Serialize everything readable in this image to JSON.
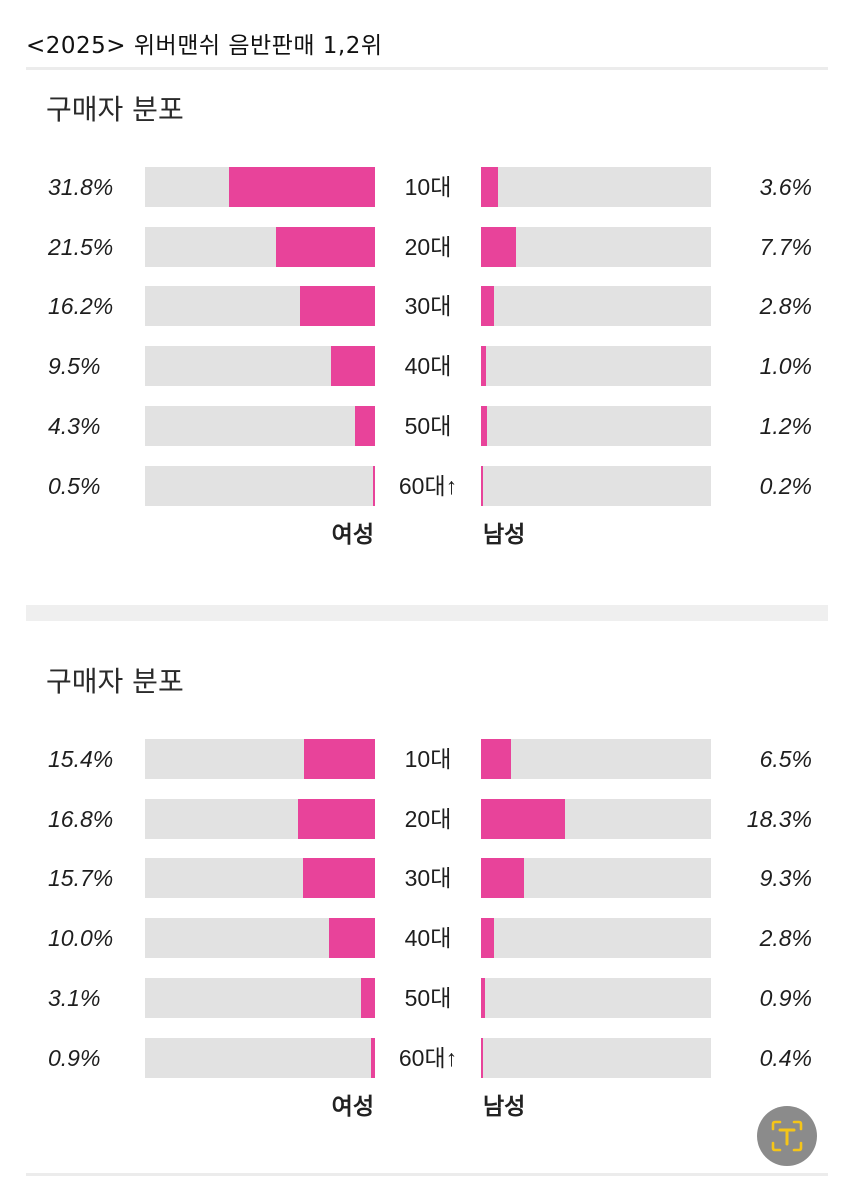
{
  "header": {
    "title": "<2025> 위버맨쉬 음반판매 1,2위"
  },
  "colors": {
    "bar_fill": "#e8439a",
    "bar_track": "#e2e2e2",
    "scan_button": "#8b8b8b",
    "scan_icon": "#f5c518"
  },
  "icons": {
    "scan_button": "text-scan-icon"
  },
  "chart_data": [
    {
      "type": "bar",
      "title": "구매자 분포",
      "categories": [
        "10대",
        "20대",
        "30대",
        "40대",
        "50대",
        "60대↑"
      ],
      "series": [
        {
          "name": "여성",
          "values": [
            31.8,
            21.5,
            16.2,
            9.5,
            4.3,
            0.5
          ],
          "labels": [
            "31.8%",
            "21.5%",
            "16.2%",
            "9.5%",
            "4.3%",
            "0.5%"
          ]
        },
        {
          "name": "남성",
          "values": [
            3.6,
            7.7,
            2.8,
            1.0,
            1.2,
            0.2
          ],
          "labels": [
            "3.6%",
            "7.7%",
            "2.8%",
            "1.0%",
            "1.2%",
            "0.2%"
          ]
        }
      ]
    },
    {
      "type": "bar",
      "title": "구매자 분포",
      "categories": [
        "10대",
        "20대",
        "30대",
        "40대",
        "50대",
        "60대↑"
      ],
      "series": [
        {
          "name": "여성",
          "values": [
            15.4,
            16.8,
            15.7,
            10.0,
            3.1,
            0.9
          ],
          "labels": [
            "15.4%",
            "16.8%",
            "15.7%",
            "10.0%",
            "3.1%",
            "0.9%"
          ]
        },
        {
          "name": "남성",
          "values": [
            6.5,
            18.3,
            9.3,
            2.8,
            0.9,
            0.4
          ],
          "labels": [
            "6.5%",
            "18.3%",
            "9.3%",
            "2.8%",
            "0.9%",
            "0.4%"
          ]
        }
      ]
    }
  ]
}
